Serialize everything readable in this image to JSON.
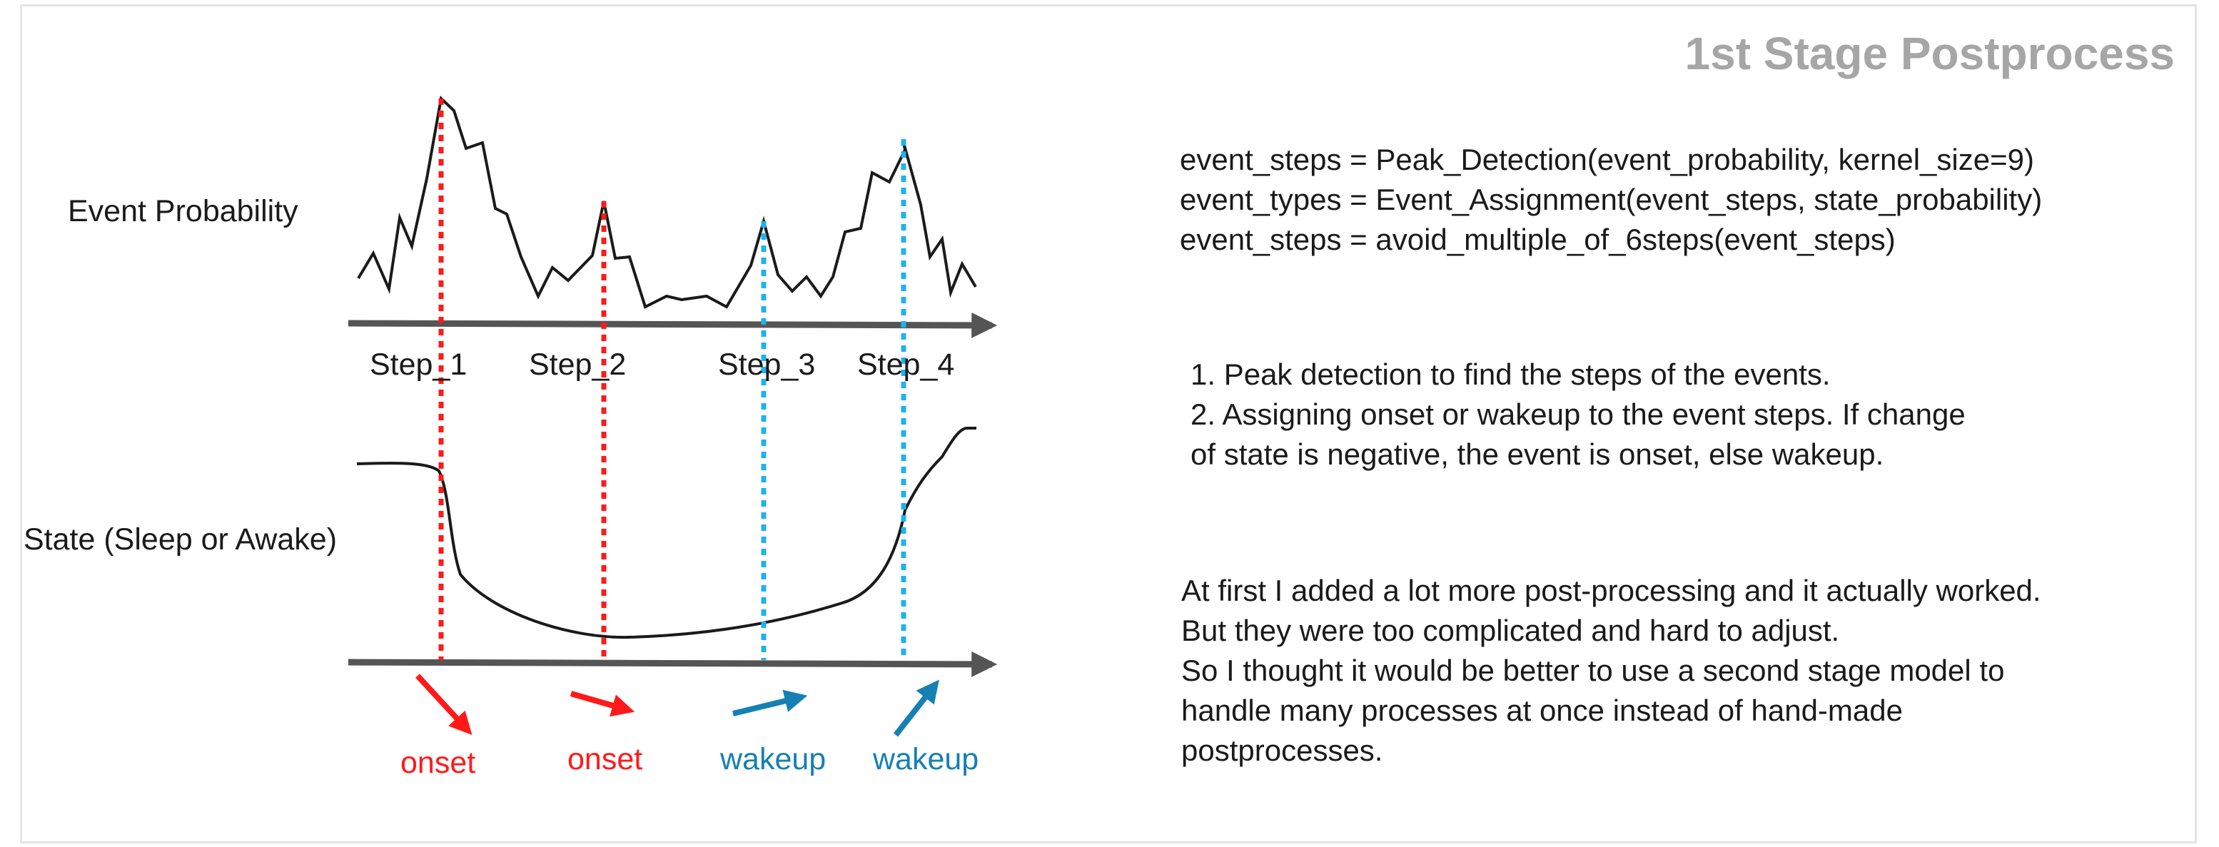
{
  "title": "1st Stage Postprocess",
  "diagram": {
    "event_probability_label": "Event Probability",
    "state_label": "State (Sleep or Awake)",
    "steps": [
      "Step_1",
      "Step_2",
      "Step_3",
      "Step_4"
    ],
    "events": [
      {
        "label": "onset",
        "type": "onset"
      },
      {
        "label": "onset",
        "type": "onset"
      },
      {
        "label": "wakeup",
        "type": "wakeup"
      },
      {
        "label": "wakeup",
        "type": "wakeup"
      }
    ],
    "colors": {
      "onset": "#ff1a1a",
      "wakeup": "#1fb1f0",
      "wakeup_text": "#1580b4",
      "axis": "#555555",
      "curve": "#1a1a1a"
    }
  },
  "code_lines": [
    "event_steps = Peak_Detection(event_probability, kernel_size=9)",
    "event_types = Event_Assignment(event_steps, state_probability)",
    "event_steps = avoid_multiple_of_6steps(event_steps)"
  ],
  "steps_list": [
    "1. Peak detection to find the steps of the events.",
    "2. Assigning onset or wakeup to the event steps. If change",
    "of state is negative, the event is onset, else wakeup."
  ],
  "notes": [
    "At first I added a lot more post-processing and it actually worked.",
    "But they were too complicated and hard to adjust.",
    "So I thought it would be better to use a second stage model to",
    "handle many processes at once instead of hand-made",
    "postprocesses."
  ]
}
